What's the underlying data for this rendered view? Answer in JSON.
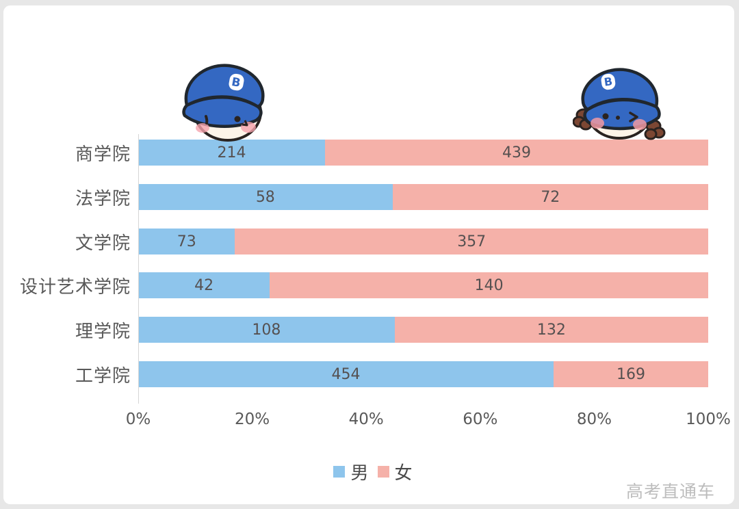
{
  "page": {
    "watermark": "高考直通车"
  },
  "colors": {
    "male": "#8EC5EC",
    "female": "#F5B1A9",
    "label_text": "#595959",
    "value_text": "#555050",
    "axis_line": "#D6D6D6",
    "watermark": "#BDBDBD",
    "cap_blue": "#3468C2",
    "hair_brown": "#7C4733",
    "face_cream": "#FDF4E8",
    "blush_pink": "#F5A3AC"
  },
  "icons": {
    "boy_mascot": "boy-with-blue-cap-icon",
    "girl_mascot": "girl-with-blue-cap-pigtails-icon",
    "cap_badge_letter": "B"
  },
  "chart_data": {
    "type": "bar",
    "variant": "horizontal-100pct-stacked",
    "categories": [
      "商学院",
      "法学院",
      "文学院",
      "设计艺术学院",
      "理学院",
      "工学院"
    ],
    "series": [
      {
        "name": "男",
        "color": "#8EC5EC",
        "values": [
          214,
          58,
          73,
          42,
          108,
          454
        ]
      },
      {
        "name": "女",
        "color": "#F5B1A9",
        "values": [
          439,
          72,
          357,
          140,
          132,
          169
        ]
      }
    ],
    "x_tick_labels": [
      "0%",
      "20%",
      "40%",
      "60%",
      "80%",
      "100%"
    ],
    "xlim_percent": [
      0,
      100
    ],
    "grid": false,
    "legend_position": "bottom",
    "data_labels": "centered-in-segment"
  }
}
